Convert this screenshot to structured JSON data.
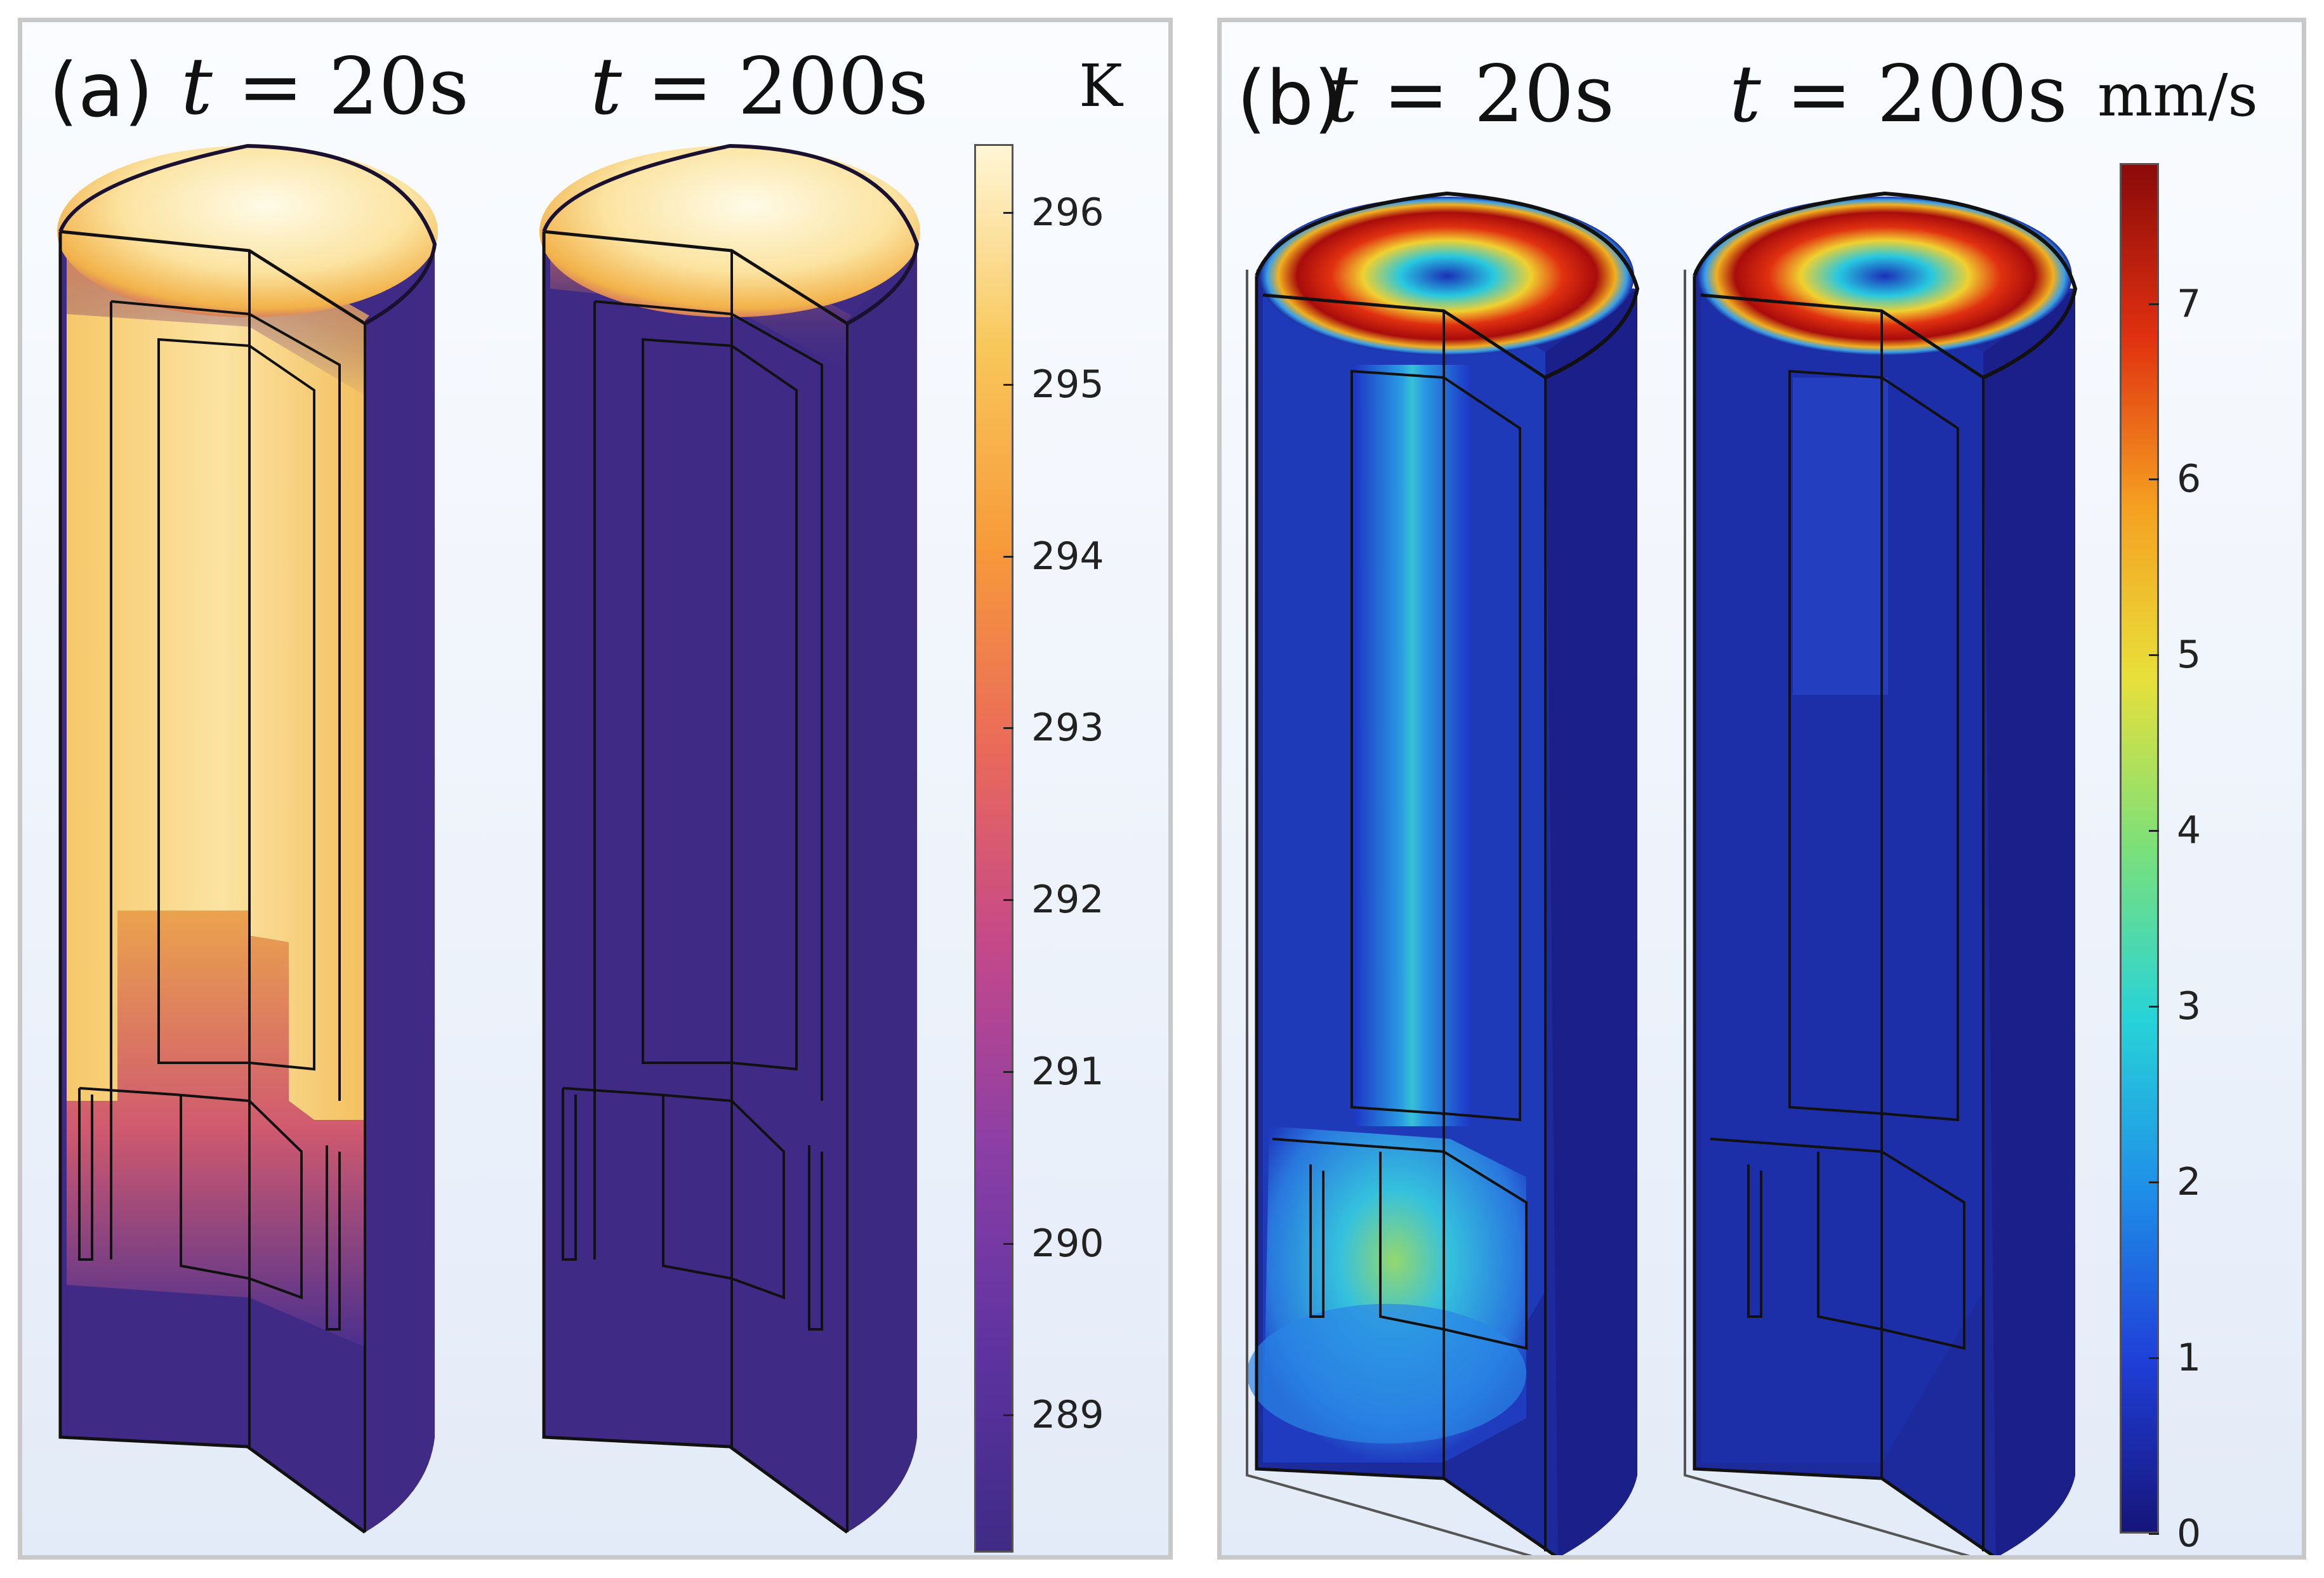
{
  "panel_a": {
    "label": "(a)",
    "time_left": {
      "var": "t",
      "eq": "= 20s"
    },
    "time_right": {
      "var": "t",
      "eq": "= 200s"
    },
    "unit": "K",
    "colorbar": {
      "colormap": "inferno-like (dark purple to pale yellow)",
      "min": 288.2,
      "max": 296.4,
      "ticks": [
        "296",
        "295",
        "294",
        "293",
        "292",
        "291",
        "290",
        "289"
      ],
      "tick_values": [
        296,
        295,
        294,
        293,
        292,
        291,
        290,
        289
      ],
      "colors": [
        "#3f2b86",
        "#5e33a0",
        "#8b3fa6",
        "#c4488a",
        "#ea6a5a",
        "#f79a3a",
        "#f8c75a",
        "#fff6d6"
      ]
    }
  },
  "panel_b": {
    "label": "(b)",
    "time_left": {
      "var": "t",
      "eq": "= 20s"
    },
    "time_right": {
      "var": "t",
      "eq": "= 200s"
    },
    "unit": "mm/s",
    "colorbar": {
      "colormap": "jet",
      "min": 0,
      "max": 7.8,
      "ticks": [
        "7",
        "6",
        "5",
        "4",
        "3",
        "2",
        "1",
        "0"
      ],
      "tick_values": [
        7,
        6,
        5,
        4,
        3,
        2,
        1,
        0
      ],
      "colors": [
        "#16157a",
        "#1f3fd8",
        "#1f8fe8",
        "#27d3d8",
        "#7be07a",
        "#e8e03a",
        "#f5a020",
        "#e03010",
        "#8a0a0a"
      ]
    }
  }
}
